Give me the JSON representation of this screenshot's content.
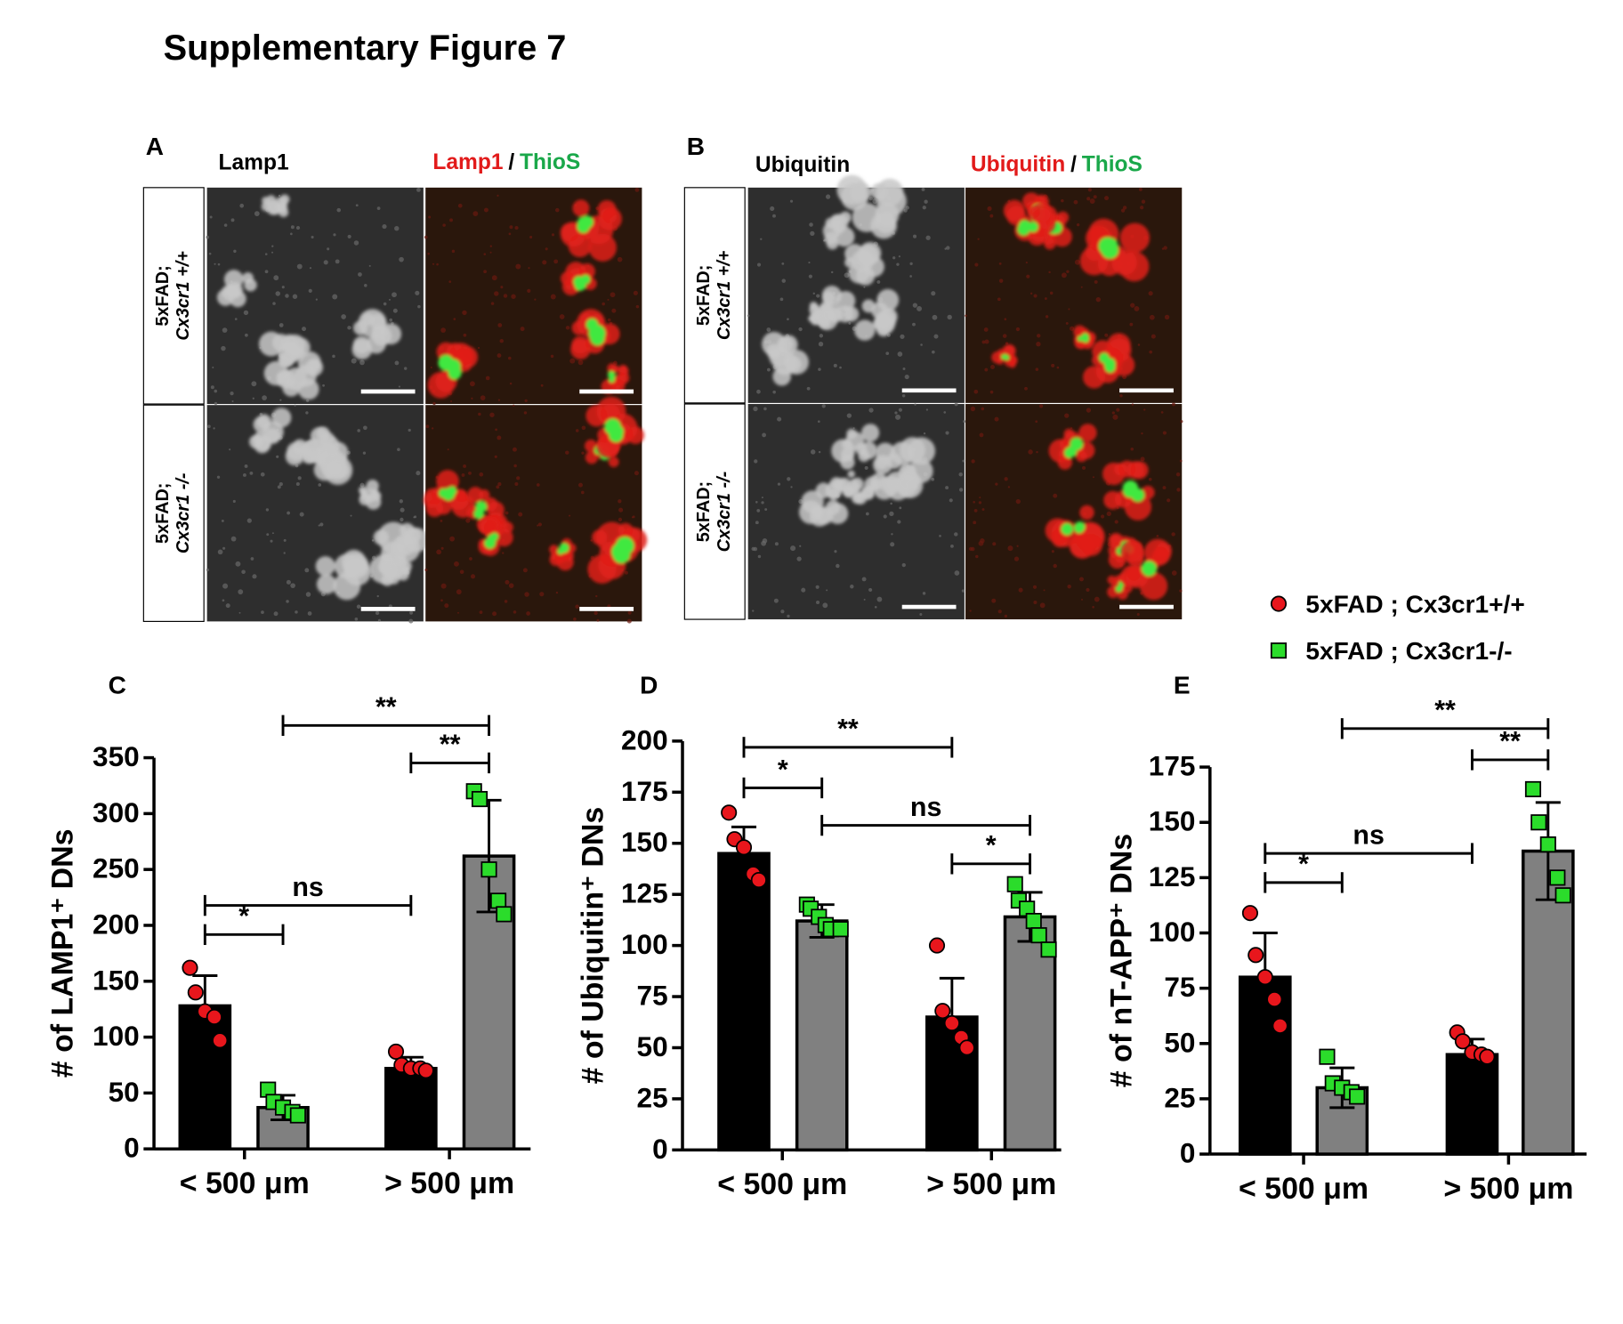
{
  "figure": {
    "title": "Supplementary Figure 7"
  },
  "panels": [
    {
      "letter": "A",
      "header": "Lamp1",
      "merged": [
        "Lamp1",
        "/",
        "ThioS"
      ],
      "rows": [
        [
          "5xFAD;",
          "Cx3cr1 +/+"
        ],
        [
          "5xFAD;",
          "Cx3cr1 -/-"
        ]
      ]
    },
    {
      "letter": "B",
      "header": "Ubiquitin",
      "merged": [
        "Ubiquitin",
        "/",
        "ThioS"
      ],
      "rows": [
        [
          "5xFAD;",
          "Cx3cr1 +/+"
        ],
        [
          "5xFAD;",
          "Cx3cr1 -/-"
        ]
      ]
    }
  ],
  "legend": [
    {
      "name": "5xFAD ; Cx3cr1+/+",
      "marker": "circle",
      "color": "#e8161c"
    },
    {
      "name": "5xFAD ; Cx3cr1-/-",
      "marker": "square",
      "color": "#2bdc2b"
    }
  ],
  "chart_data": [
    {
      "type": "bar",
      "panel": "C",
      "y_label": "# of LAMP1⁺ DNs",
      "categories": [
        "< 500 μm",
        "> 500 μm"
      ],
      "ylim": [
        0,
        350
      ],
      "yticks": [
        0,
        50,
        100,
        150,
        200,
        250,
        300,
        350
      ],
      "series": [
        {
          "color": "#000000",
          "values": [
            128,
            72
          ],
          "errors": [
            27,
            10
          ],
          "points": [
            [
              162,
              140,
              123,
              118,
              97
            ],
            [
              87,
              75,
              72,
              72,
              70
            ]
          ]
        },
        {
          "color": "#808080",
          "values": [
            37,
            262
          ],
          "errors": [
            11,
            50
          ],
          "points": [
            [
              53,
              42,
              37,
              33,
              30
            ],
            [
              320,
              313,
              250,
              222,
              210
            ]
          ]
        }
      ],
      "significance": [
        "*",
        "ns",
        "**",
        "**"
      ]
    },
    {
      "type": "bar",
      "panel": "D",
      "y_label": "# of Ubiquitin⁺ DNs",
      "categories": [
        "< 500 μm",
        "> 500 μm"
      ],
      "ylim": [
        0,
        200
      ],
      "yticks": [
        0,
        25,
        50,
        75,
        100,
        125,
        150,
        175,
        200
      ],
      "series": [
        {
          "color": "#000000",
          "values": [
            145,
            65
          ],
          "errors": [
            13,
            19
          ],
          "points": [
            [
              165,
              152,
              148,
              135,
              132
            ],
            [
              100,
              68,
              62,
              55,
              50
            ]
          ]
        },
        {
          "color": "#808080",
          "values": [
            112,
            114
          ],
          "errors": [
            8,
            12
          ],
          "points": [
            [
              120,
              118,
              114,
              110,
              108,
              108
            ],
            [
              130,
              122,
              118,
              112,
              105,
              98
            ]
          ]
        }
      ],
      "significance": [
        "*",
        "**",
        "ns",
        "*"
      ]
    },
    {
      "type": "bar",
      "panel": "E",
      "y_label": "# of nT-APP⁺ DNs",
      "categories": [
        "< 500 μm",
        "> 500 μm"
      ],
      "ylim": [
        0,
        175
      ],
      "yticks": [
        0,
        25,
        50,
        75,
        100,
        125,
        150,
        175
      ],
      "series": [
        {
          "color": "#000000",
          "values": [
            80,
            45
          ],
          "errors": [
            20,
            7
          ],
          "points": [
            [
              109,
              90,
              80,
              70,
              58
            ],
            [
              55,
              51,
              46,
              45,
              44
            ]
          ]
        },
        {
          "color": "#808080",
          "values": [
            30,
            137
          ],
          "errors": [
            9,
            22
          ],
          "points": [
            [
              44,
              32,
              30,
              28,
              26
            ],
            [
              165,
              150,
              140,
              125,
              117
            ]
          ]
        }
      ],
      "significance": [
        "*",
        "ns",
        "**",
        "**"
      ]
    }
  ]
}
